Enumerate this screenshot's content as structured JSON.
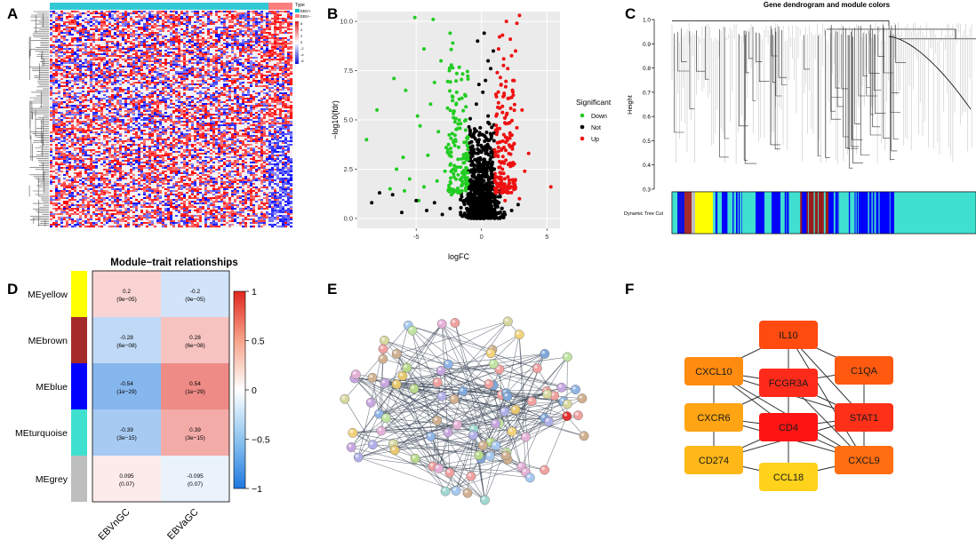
{
  "panels": {
    "A": {
      "letter": "A",
      "legend_title": "Type",
      "legend_items": [
        "EBV+",
        "EBV−"
      ],
      "legend_colors": [
        "#00c0cc",
        "#ff7f7f"
      ],
      "scale_ticks": [
        "6",
        "4",
        "2",
        "0",
        "-2",
        "-4",
        "-6"
      ]
    },
    "B": {
      "letter": "B"
    },
    "C": {
      "letter": "C",
      "title": "Gene dendrogram and module colors",
      "ylabel": "Height",
      "yticks": [
        "1.0",
        "0.9",
        "0.8",
        "0.7",
        "0.6",
        "0.5",
        "0.4",
        "0.3"
      ],
      "row_label": "Dynamic Tree Cut"
    },
    "D": {
      "letter": "D"
    },
    "E": {
      "letter": "E"
    },
    "F": {
      "letter": "F"
    }
  },
  "chart_data": [
    {
      "type": "scatter",
      "panel": "B",
      "title": "",
      "xlabel": "logFC",
      "ylabel": "−log10(fdr)",
      "xlim": [
        -9.5,
        6
      ],
      "ylim": [
        -0.5,
        10.5
      ],
      "xticks": [
        "-5",
        "0",
        "5"
      ],
      "yticks": [
        "0.0",
        "2.5",
        "5.0",
        "7.5",
        "10.0"
      ],
      "legend_title": "Significant",
      "legend": [
        "Down",
        "Not",
        "Up"
      ],
      "series": [
        {
          "name": "Down",
          "color": "#22cc22",
          "points": [
            [
              -5.1,
              10.2
            ],
            [
              -3.7,
              10.1
            ],
            [
              -2.4,
              9.4
            ],
            [
              -4.4,
              8.6
            ],
            [
              -2.2,
              8.9
            ],
            [
              -3.1,
              8.0
            ],
            [
              -6.7,
              7.1
            ],
            [
              -8.0,
              5.5
            ],
            [
              -5.8,
              6.5
            ],
            [
              -4.9,
              5.2
            ],
            [
              -3.6,
              6.9
            ],
            [
              -2.6,
              5.6
            ],
            [
              -1.9,
              6.4
            ],
            [
              -1.5,
              6.1
            ],
            [
              -3.3,
              4.4
            ],
            [
              -2.0,
              4.0
            ],
            [
              -6.0,
              3.1
            ],
            [
              -4.7,
              4.7
            ],
            [
              -1.2,
              5.0
            ],
            [
              -1.8,
              3.0
            ],
            [
              -2.8,
              2.4
            ],
            [
              -5.5,
              2.0
            ],
            [
              -4.4,
              1.6
            ],
            [
              -3.4,
              1.9
            ],
            [
              -1.3,
              2.2
            ],
            [
              -8.8,
              4.0
            ],
            [
              -7.0,
              1.5
            ],
            [
              -2.3,
              1.2
            ],
            [
              -1.1,
              3.7
            ],
            [
              -4.1,
              3.2
            ],
            [
              -6.5,
              2.5
            ],
            [
              -3.9,
              5.8
            ],
            [
              -2.7,
              3.6
            ],
            [
              -1.6,
              2.6
            ],
            [
              -5.9,
              1.4
            ],
            [
              -4.8,
              0.9
            ]
          ]
        },
        {
          "name": "Not",
          "color": "#000000",
          "points": [
            [
              -0.2,
              0.2
            ],
            [
              0.1,
              0.5
            ],
            [
              -0.5,
              0.8
            ],
            [
              0.3,
              1.2
            ],
            [
              -0.8,
              1.6
            ],
            [
              0.6,
              2.0
            ],
            [
              -0.3,
              2.5
            ],
            [
              0.2,
              3.0
            ],
            [
              -0.6,
              3.5
            ],
            [
              0.4,
              4.0
            ],
            [
              -0.1,
              4.6
            ],
            [
              0.5,
              5.2
            ],
            [
              -0.4,
              5.8
            ],
            [
              0.1,
              6.4
            ],
            [
              0.3,
              7.0
            ],
            [
              0.5,
              8.0
            ],
            [
              -0.2,
              6.8
            ],
            [
              0.7,
              7.6
            ],
            [
              0.9,
              8.5
            ],
            [
              -1.0,
              0.4
            ],
            [
              1.1,
              0.6
            ],
            [
              -1.6,
              0.3
            ],
            [
              1.8,
              0.2
            ],
            [
              -2.4,
              0.5
            ],
            [
              2.3,
              0.4
            ],
            [
              -3.0,
              0.2
            ],
            [
              2.8,
              0.7
            ],
            [
              -3.6,
              0.8
            ],
            [
              -4.2,
              0.4
            ],
            [
              -5.0,
              0.9
            ],
            [
              -6.1,
              0.3
            ],
            [
              -7.8,
              1.3
            ],
            [
              -8.4,
              0.8
            ],
            [
              -6.8,
              1.2
            ],
            [
              0.0,
              1.8
            ],
            [
              -0.7,
              2.8
            ],
            [
              0.8,
              3.4
            ],
            [
              -0.9,
              4.2
            ],
            [
              0.6,
              4.8
            ],
            [
              -0.3,
              9.0
            ],
            [
              0.2,
              9.4
            ],
            [
              -1.3,
              0.9
            ],
            [
              1.4,
              1.4
            ]
          ]
        },
        {
          "name": "Up",
          "color": "#ee1111",
          "points": [
            [
              2.9,
              10.3
            ],
            [
              2.7,
              9.9
            ],
            [
              1.9,
              10.0
            ],
            [
              1.6,
              9.3
            ],
            [
              2.2,
              9.1
            ],
            [
              1.3,
              8.6
            ],
            [
              2.6,
              8.5
            ],
            [
              1.7,
              8.1
            ],
            [
              2.0,
              7.6
            ],
            [
              1.2,
              7.4
            ],
            [
              2.4,
              7.0
            ],
            [
              1.5,
              6.8
            ],
            [
              1.1,
              6.3
            ],
            [
              2.1,
              6.1
            ],
            [
              3.1,
              5.5
            ],
            [
              1.4,
              5.6
            ],
            [
              1.8,
              5.1
            ],
            [
              2.7,
              4.6
            ],
            [
              1.2,
              4.4
            ],
            [
              1.9,
              4.1
            ],
            [
              2.5,
              3.8
            ],
            [
              3.6,
              3.3
            ],
            [
              1.3,
              3.4
            ],
            [
              2.2,
              2.8
            ],
            [
              1.6,
              2.5
            ],
            [
              3.3,
              2.4
            ],
            [
              1.1,
              2.1
            ],
            [
              2.0,
              1.6
            ],
            [
              1.4,
              1.3
            ],
            [
              5.3,
              1.6
            ],
            [
              2.9,
              1.0
            ],
            [
              1.8,
              0.9
            ]
          ]
        }
      ]
    },
    {
      "type": "heatmap",
      "panel": "D",
      "title": "Module−trait relationships",
      "rows": [
        "MEyellow",
        "MEbrown",
        "MEblue",
        "MEturquoise",
        "MEgrey"
      ],
      "row_colors": [
        "#ffff00",
        "#a52a2a",
        "#0000ff",
        "#40e0d0",
        "#bebebe"
      ],
      "columns": [
        "EBVnGC",
        "EBVaGC"
      ],
      "values": [
        [
          0.2,
          -0.2
        ],
        [
          -0.28,
          0.28
        ],
        [
          -0.54,
          0.54
        ],
        [
          -0.39,
          0.39
        ],
        [
          0.095,
          -0.095
        ]
      ],
      "value_labels": [
        [
          "0.2",
          "-0.2"
        ],
        [
          "-0.28",
          "0.28"
        ],
        [
          "-0.54",
          "0.54"
        ],
        [
          "-0.39",
          "0.39"
        ],
        [
          "0.095",
          "-0.095"
        ]
      ],
      "pvalue_labels": [
        [
          "(9e−05)",
          "(9e−05)"
        ],
        [
          "(6e−08)",
          "(6e−08)"
        ],
        [
          "(1e−29)",
          "(1e−29)"
        ],
        [
          "(3e−15)",
          "(3e−15)"
        ],
        [
          "(0.07)",
          "(0.07)"
        ]
      ],
      "colorbar_ticks": [
        "1",
        "0.5",
        "0",
        "−0.5",
        "−1"
      ],
      "colorbar_range": [
        -1,
        1
      ]
    }
  ],
  "networkF": {
    "nodes": [
      {
        "id": "IL10",
        "label": "IL10",
        "color": "#ff4a10"
      },
      {
        "id": "CXCL10",
        "label": "CXCL10",
        "color": "#ff8c10"
      },
      {
        "id": "FCGR3A",
        "label": "FCGR3A",
        "color": "#ff2a1a"
      },
      {
        "id": "C1QA",
        "label": "C1QA",
        "color": "#ff5a10"
      },
      {
        "id": "CXCR6",
        "label": "CXCR6",
        "color": "#ffa514"
      },
      {
        "id": "CD4",
        "label": "CD4",
        "color": "#ff1414"
      },
      {
        "id": "STAT1",
        "label": "STAT1",
        "color": "#ff3018"
      },
      {
        "id": "CD274",
        "label": "CD274",
        "color": "#ffb818"
      },
      {
        "id": "CCL18",
        "label": "CCL18",
        "color": "#ffd21c"
      },
      {
        "id": "CXCL9",
        "label": "CXCL9",
        "color": "#ff6e10"
      }
    ]
  }
}
